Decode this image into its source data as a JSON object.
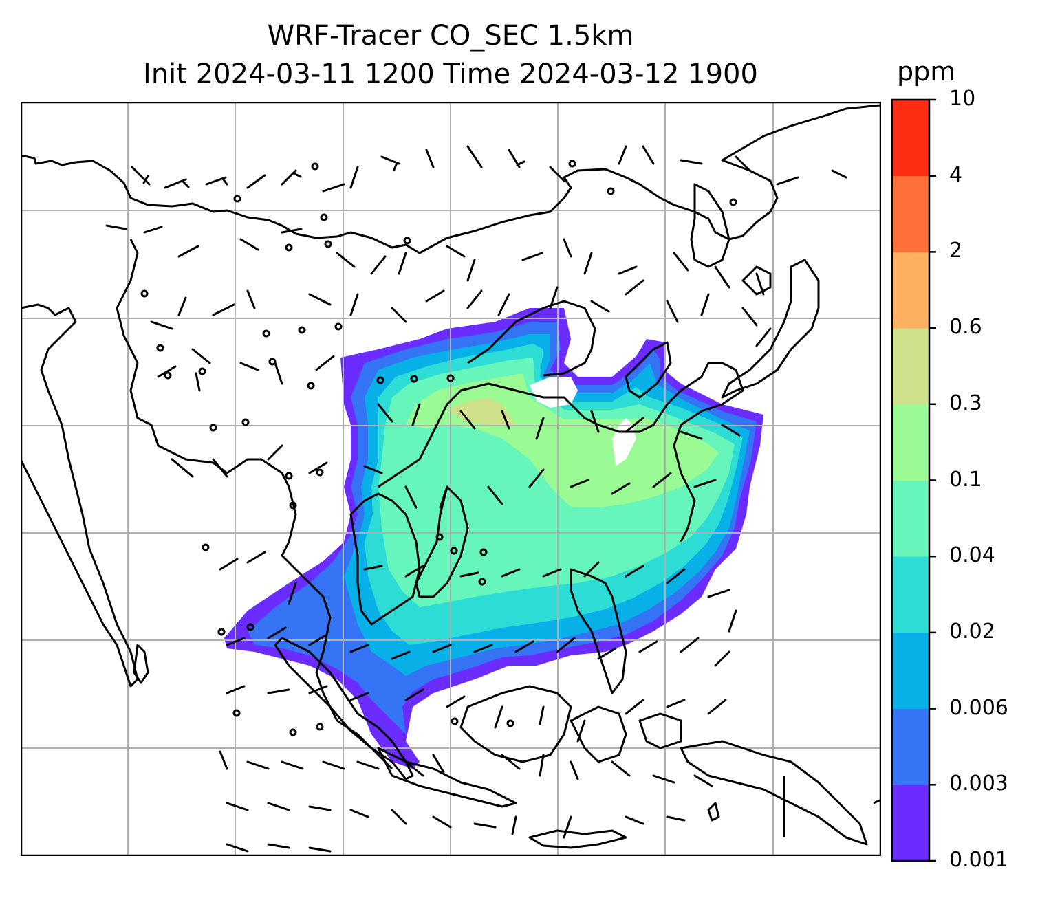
{
  "title": {
    "line1": "WRF-Tracer CO_SEC 1.5km",
    "line2": "Init 2024-03-11 1200 Time 2024-03-12 1900"
  },
  "colorbar": {
    "unit": "ppm",
    "levels": [
      "0.001",
      "0.003",
      "0.006",
      "0.02",
      "0.04",
      "0.1",
      "0.3",
      "0.6",
      "2",
      "4",
      "10"
    ],
    "colors": [
      "#6a2cff",
      "#3474f5",
      "#08b0e8",
      "#2ddcd4",
      "#66f6bc",
      "#9afa94",
      "#cfe08a",
      "#fdb060",
      "#ff7038",
      "#ff2c14"
    ]
  },
  "map": {
    "gridlines": true,
    "barb_color": "#000000",
    "coastline_color": "#000000"
  }
}
